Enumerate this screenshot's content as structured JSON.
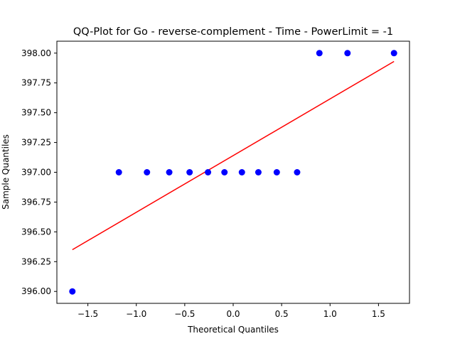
{
  "chart_data": {
    "type": "scatter",
    "title": "QQ-Plot for Go - reverse-complement - Time - PowerLimit = -1",
    "xlabel": "Theoretical Quantiles",
    "ylabel": "Sample Quantiles",
    "xlim": [
      -1.82,
      1.82
    ],
    "ylim": [
      395.9,
      398.1
    ],
    "xticks": [
      -1.5,
      -1.0,
      -0.5,
      0.0,
      0.5,
      1.0,
      1.5
    ],
    "xtick_labels": [
      "−1.5",
      "−1.0",
      "−0.5",
      "0.0",
      "0.5",
      "1.0",
      "1.5"
    ],
    "yticks": [
      396.0,
      396.25,
      396.5,
      396.75,
      397.0,
      397.25,
      397.5,
      397.75,
      398.0
    ],
    "ytick_labels": [
      "396.00",
      "396.25",
      "396.50",
      "396.75",
      "397.00",
      "397.25",
      "397.50",
      "397.75",
      "398.00"
    ],
    "grid": false,
    "series": [
      {
        "kind": "points",
        "color": "#0000ff",
        "x": [
          -1.66,
          -1.18,
          -0.89,
          -0.66,
          -0.45,
          -0.26,
          -0.09,
          0.09,
          0.26,
          0.45,
          0.66,
          0.89,
          1.18,
          1.66
        ],
        "y": [
          396.0,
          397.0,
          397.0,
          397.0,
          397.0,
          397.0,
          397.0,
          397.0,
          397.0,
          397.0,
          397.0,
          398.0,
          398.0,
          398.0
        ]
      },
      {
        "kind": "reference-line",
        "color": "#ff0000",
        "x": [
          -1.66,
          1.66
        ],
        "y": [
          396.35,
          397.93
        ]
      }
    ]
  }
}
